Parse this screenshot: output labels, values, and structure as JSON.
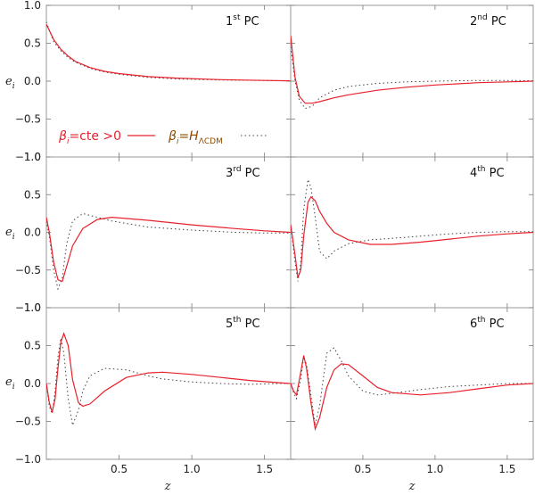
{
  "chart_data": {
    "type": "line",
    "layout": "3x2 grid of panels with shared axes",
    "xlabel": "z",
    "ylabel": "e",
    "ylabel_sub": "i",
    "xlim": [
      0,
      1.68
    ],
    "ylim": [
      -1.0,
      1.0
    ],
    "x_ticks": [
      0.5,
      1.0,
      1.5
    ],
    "x_tick_labels": [
      "0.5",
      "1.0",
      "1.5"
    ],
    "y_ticks": [
      -1.0,
      -0.5,
      0.0,
      0.5,
      1.0
    ],
    "y_tick_labels": [
      "−1.0",
      "−0.5",
      "0.0",
      "0.5",
      "1.0"
    ],
    "colors": {
      "solid": "#e8202b",
      "dotted": "#444444",
      "frame": "#999999",
      "legend_hlambda": "#8a4a00"
    },
    "legend": {
      "placement": "inside first panel, lower-left",
      "solid_main": "β",
      "solid_sub": "i",
      "solid_rest": "=cte >0",
      "dotted_main": "β",
      "dotted_sub": "i",
      "dotted_eq": "=H",
      "dotted_sub2": "ΛCDM"
    },
    "panels": [
      {
        "label_num": "1",
        "label_sup": "st",
        "label_rest": "PC",
        "solid": {
          "x": [
            0.0,
            0.05,
            0.1,
            0.15,
            0.2,
            0.3,
            0.4,
            0.5,
            0.7,
            0.9,
            1.2,
            1.5,
            1.68
          ],
          "y": [
            0.75,
            0.55,
            0.42,
            0.33,
            0.26,
            0.18,
            0.13,
            0.1,
            0.06,
            0.04,
            0.02,
            0.01,
            0.005
          ]
        },
        "dotted": {
          "x": [
            0.0,
            0.05,
            0.1,
            0.15,
            0.2,
            0.3,
            0.4,
            0.5,
            0.7,
            0.9,
            1.2,
            1.5,
            1.68
          ],
          "y": [
            0.78,
            0.52,
            0.4,
            0.31,
            0.25,
            0.17,
            0.12,
            0.09,
            0.05,
            0.03,
            0.015,
            0.008,
            0.004
          ]
        }
      },
      {
        "label_num": "2",
        "label_sup": "nd",
        "label_rest": "PC",
        "solid": {
          "x": [
            0.0,
            0.03,
            0.06,
            0.1,
            0.15,
            0.2,
            0.3,
            0.4,
            0.6,
            0.8,
            1.0,
            1.3,
            1.5,
            1.68
          ],
          "y": [
            0.6,
            0.05,
            -0.2,
            -0.29,
            -0.29,
            -0.27,
            -0.22,
            -0.18,
            -0.12,
            -0.08,
            -0.05,
            -0.02,
            -0.01,
            0.0
          ]
        },
        "dotted": {
          "x": [
            0.0,
            0.03,
            0.06,
            0.1,
            0.15,
            0.2,
            0.3,
            0.4,
            0.6,
            0.8,
            1.0,
            1.3,
            1.5,
            1.68
          ],
          "y": [
            0.45,
            0.0,
            -0.25,
            -0.36,
            -0.33,
            -0.22,
            -0.12,
            -0.07,
            -0.03,
            -0.01,
            0.0,
            0.01,
            0.01,
            0.005
          ]
        }
      },
      {
        "label_num": "3",
        "label_sup": "rd",
        "label_rest": "PC",
        "solid": {
          "x": [
            0.0,
            0.02,
            0.05,
            0.08,
            0.11,
            0.14,
            0.18,
            0.25,
            0.35,
            0.45,
            0.7,
            1.0,
            1.3,
            1.5,
            1.68
          ],
          "y": [
            0.2,
            0.0,
            -0.4,
            -0.63,
            -0.65,
            -0.45,
            -0.18,
            0.05,
            0.17,
            0.2,
            0.16,
            0.1,
            0.05,
            0.02,
            0.0
          ]
        },
        "dotted": {
          "x": [
            0.0,
            0.02,
            0.05,
            0.08,
            0.11,
            0.14,
            0.18,
            0.25,
            0.35,
            0.45,
            0.7,
            1.0,
            1.3,
            1.5,
            1.68
          ],
          "y": [
            0.15,
            -0.05,
            -0.5,
            -0.75,
            -0.6,
            -0.15,
            0.15,
            0.25,
            0.2,
            0.15,
            0.07,
            0.03,
            0.0,
            -0.01,
            -0.01
          ]
        }
      },
      {
        "label_num": "4",
        "label_sup": "th",
        "label_rest": "PC",
        "solid": {
          "x": [
            0.0,
            0.03,
            0.05,
            0.07,
            0.09,
            0.12,
            0.14,
            0.17,
            0.2,
            0.25,
            0.3,
            0.4,
            0.55,
            0.7,
            0.9,
            1.1,
            1.3,
            1.5,
            1.68
          ],
          "y": [
            0.1,
            -0.3,
            -0.6,
            -0.5,
            -0.05,
            0.4,
            0.47,
            0.42,
            0.28,
            0.12,
            0.0,
            -0.1,
            -0.16,
            -0.16,
            -0.13,
            -0.09,
            -0.05,
            -0.02,
            0.0
          ]
        },
        "dotted": {
          "x": [
            0.0,
            0.03,
            0.05,
            0.07,
            0.09,
            0.12,
            0.14,
            0.17,
            0.2,
            0.25,
            0.3,
            0.4,
            0.55,
            0.7,
            0.9,
            1.1,
            1.3,
            1.5,
            1.68
          ],
          "y": [
            0.1,
            -0.4,
            -0.65,
            -0.4,
            0.3,
            0.7,
            0.6,
            0.2,
            -0.25,
            -0.35,
            -0.25,
            -0.15,
            -0.1,
            -0.08,
            -0.05,
            -0.02,
            0.0,
            0.01,
            0.01
          ]
        }
      },
      {
        "label_num": "5",
        "label_sup": "th",
        "label_rest": "PC",
        "solid": {
          "x": [
            0.0,
            0.02,
            0.04,
            0.06,
            0.08,
            0.1,
            0.12,
            0.15,
            0.18,
            0.22,
            0.25,
            0.3,
            0.4,
            0.55,
            0.7,
            0.8,
            1.0,
            1.2,
            1.4,
            1.6,
            1.68
          ],
          "y": [
            0.0,
            -0.25,
            -0.38,
            -0.2,
            0.2,
            0.55,
            0.66,
            0.5,
            0.05,
            -0.25,
            -0.3,
            -0.27,
            -0.1,
            0.08,
            0.14,
            0.15,
            0.12,
            0.08,
            0.04,
            0.01,
            0.0
          ]
        },
        "dotted": {
          "x": [
            0.0,
            0.02,
            0.04,
            0.06,
            0.08,
            0.1,
            0.12,
            0.15,
            0.18,
            0.22,
            0.25,
            0.3,
            0.4,
            0.55,
            0.7,
            0.8,
            1.0,
            1.2,
            1.4,
            1.6,
            1.68
          ],
          "y": [
            0.0,
            -0.3,
            -0.4,
            -0.1,
            0.35,
            0.6,
            0.4,
            -0.2,
            -0.55,
            -0.35,
            -0.1,
            0.1,
            0.2,
            0.18,
            0.1,
            0.06,
            0.02,
            0.0,
            -0.01,
            0.0,
            0.0
          ]
        }
      },
      {
        "label_num": "6",
        "label_sup": "th",
        "label_rest": "PC",
        "solid": {
          "x": [
            0.0,
            0.02,
            0.04,
            0.07,
            0.09,
            0.11,
            0.14,
            0.17,
            0.2,
            0.25,
            0.3,
            0.35,
            0.4,
            0.5,
            0.6,
            0.7,
            0.9,
            1.1,
            1.3,
            1.5,
            1.68
          ],
          "y": [
            0.0,
            -0.1,
            -0.15,
            0.15,
            0.37,
            0.2,
            -0.25,
            -0.6,
            -0.45,
            -0.05,
            0.18,
            0.26,
            0.25,
            0.1,
            -0.05,
            -0.12,
            -0.15,
            -0.12,
            -0.07,
            -0.02,
            0.0
          ]
        },
        "dotted": {
          "x": [
            0.0,
            0.02,
            0.04,
            0.07,
            0.09,
            0.11,
            0.14,
            0.17,
            0.2,
            0.25,
            0.3,
            0.35,
            0.4,
            0.5,
            0.6,
            0.7,
            0.9,
            1.1,
            1.3,
            1.5,
            1.68
          ],
          "y": [
            0.0,
            -0.12,
            -0.2,
            0.05,
            0.35,
            0.25,
            -0.15,
            -0.55,
            -0.3,
            0.4,
            0.47,
            0.3,
            0.1,
            -0.1,
            -0.15,
            -0.13,
            -0.08,
            -0.04,
            -0.02,
            0.0,
            0.0
          ]
        }
      }
    ]
  }
}
